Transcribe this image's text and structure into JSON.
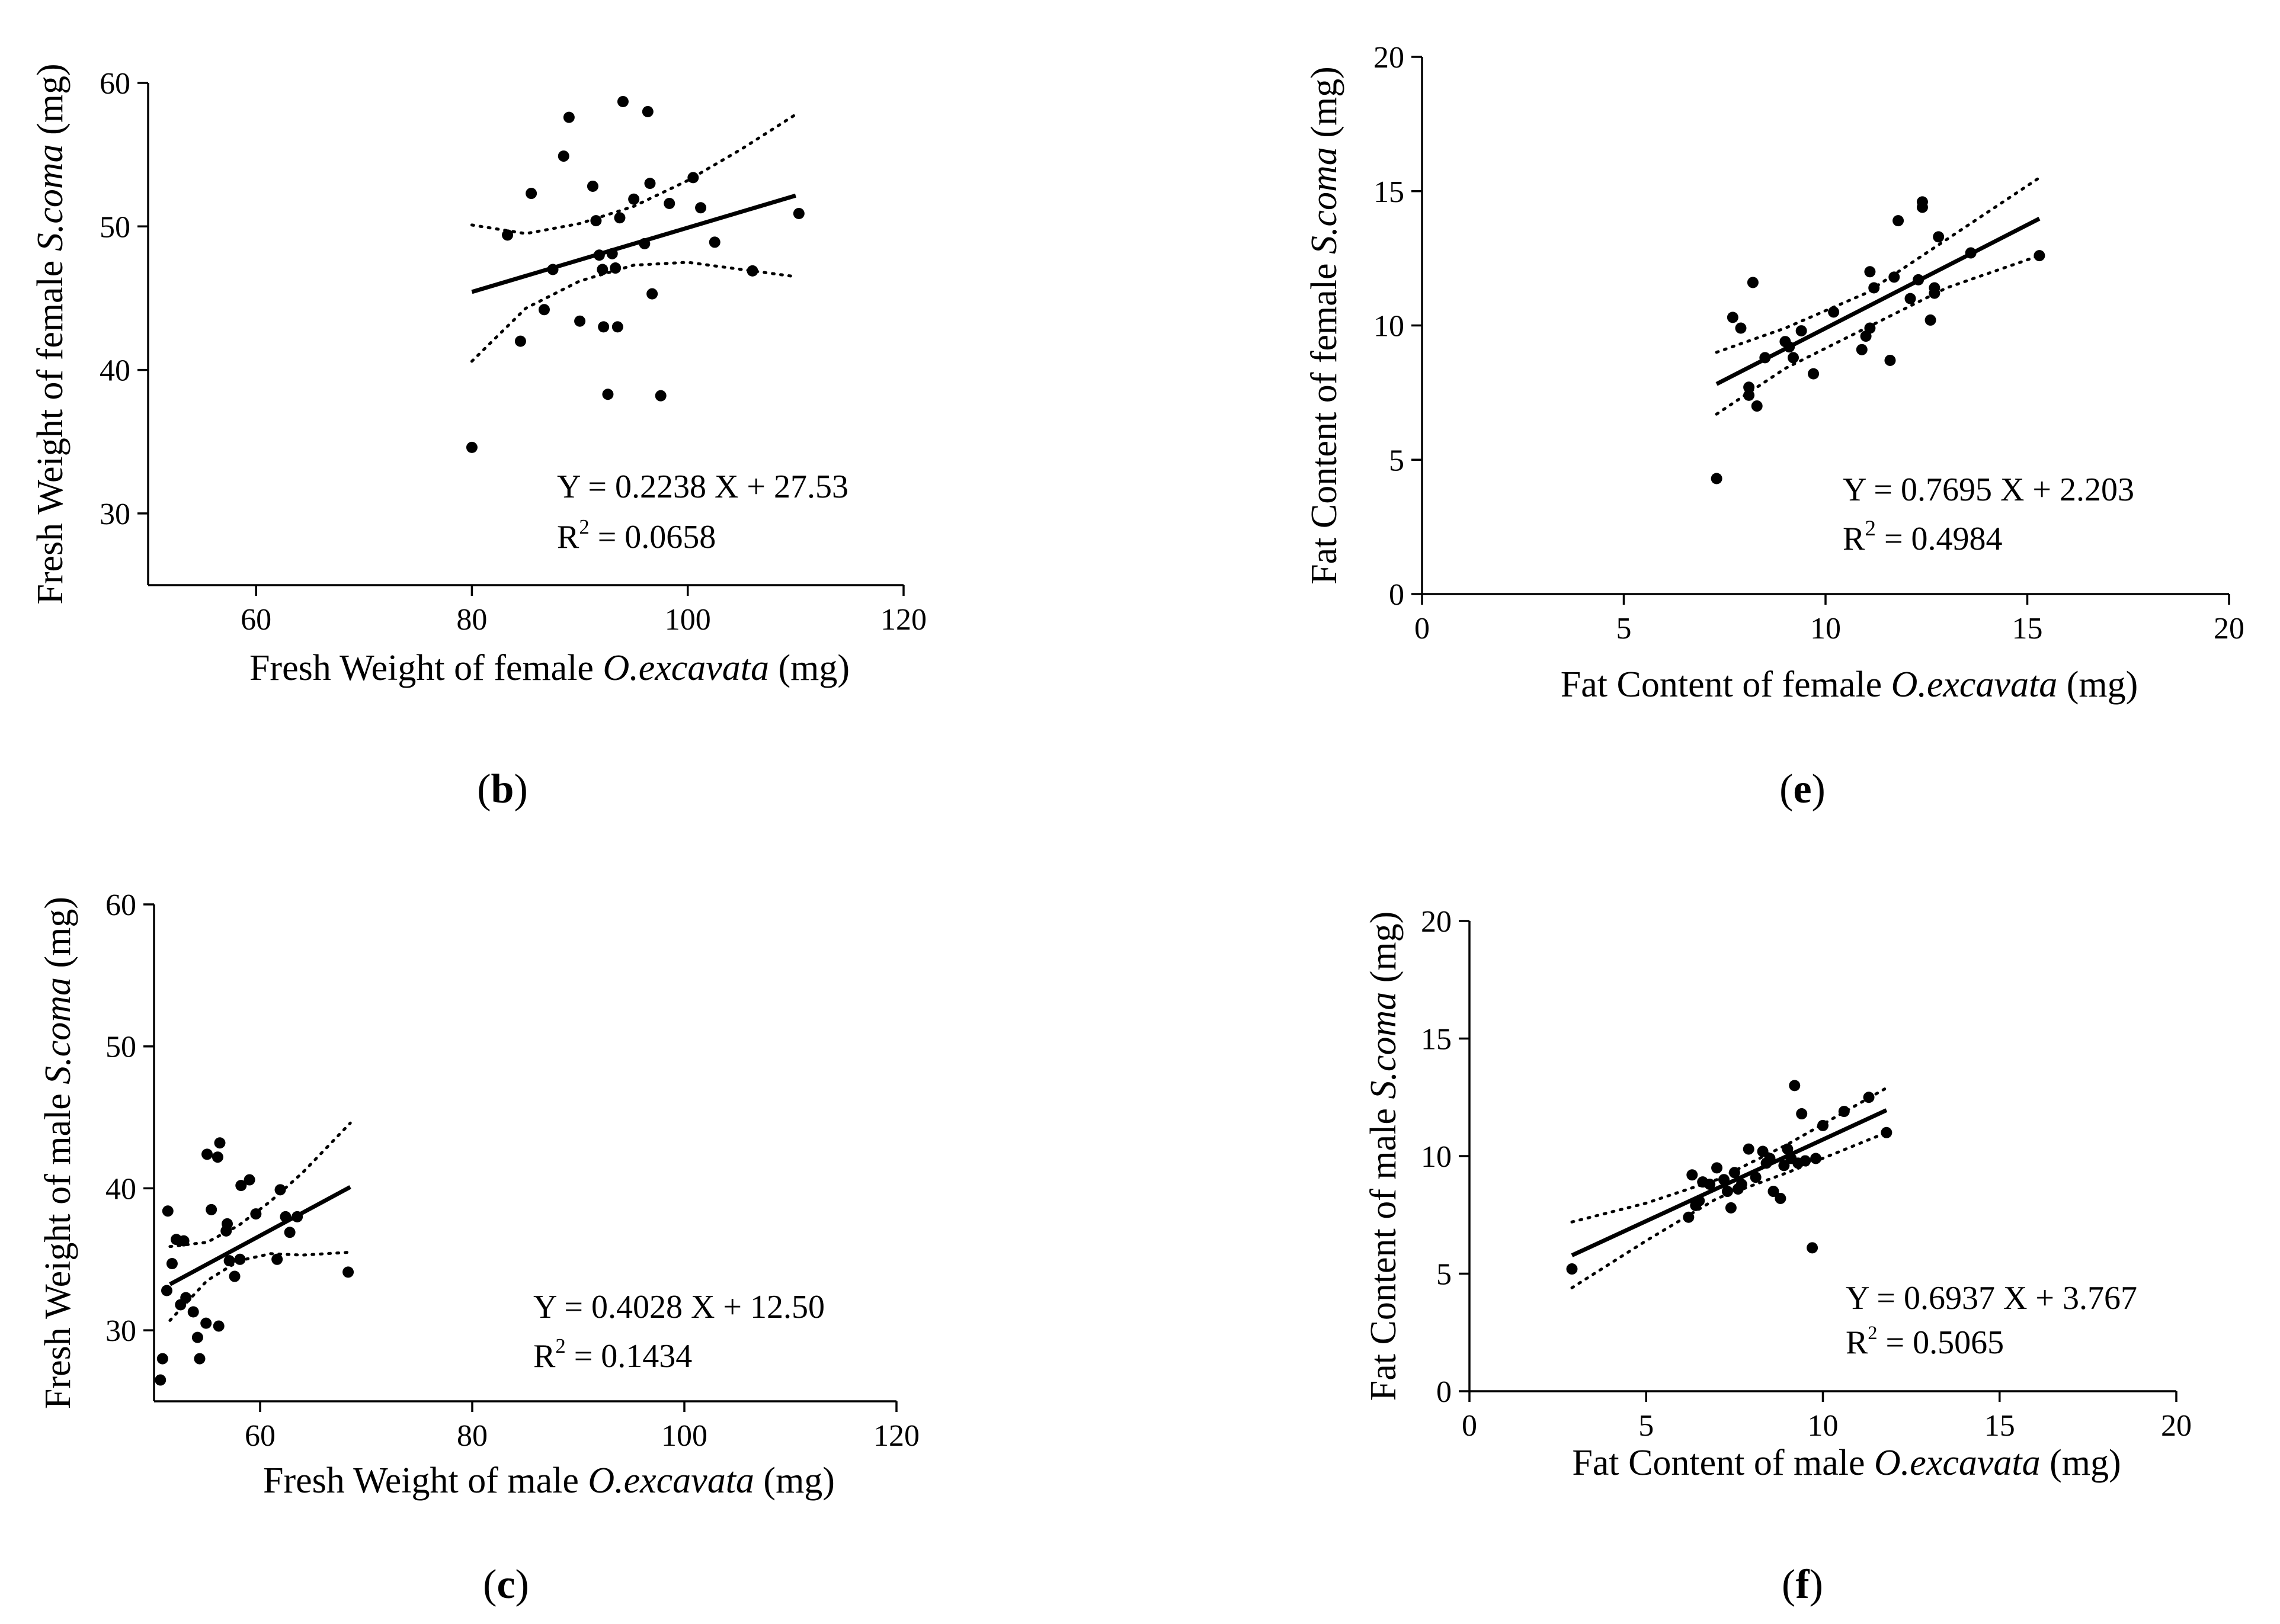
{
  "panels": [
    {
      "id": "b",
      "label": "b",
      "chart_data": {
        "type": "scatter",
        "xlabel_pre": "Fresh Weight of female ",
        "xlabel_italic": "O.excavata",
        "xlabel_post": " (mg)",
        "ylabel_pre": "Fresh Weight of female ",
        "ylabel_italic": "S.coma",
        "ylabel_post": " (mg)",
        "xlim": [
          50,
          120
        ],
        "ylim": [
          25,
          60
        ],
        "xticks": [
          60,
          80,
          100,
          120
        ],
        "yticks": [
          30,
          40,
          50,
          60
        ],
        "equation": "Y = 0.2238 X + 27.53",
        "r2_label": "R",
        "r2_exp": "2",
        "r2_value": " = 0.0658",
        "fit": {
          "slope": 0.2238,
          "intercept": 27.53,
          "x_range": [
            80,
            110
          ]
        },
        "ci_upper": [
          [
            80,
            50.1
          ],
          [
            85,
            49.5
          ],
          [
            90,
            50.2
          ],
          [
            95,
            51.4
          ],
          [
            100,
            53.2
          ],
          [
            105,
            55.4
          ],
          [
            110,
            57.8
          ]
        ],
        "ci_lower": [
          [
            80,
            40.6
          ],
          [
            85,
            44.3
          ],
          [
            90,
            46.2
          ],
          [
            95,
            47.3
          ],
          [
            100,
            47.5
          ],
          [
            105,
            47.0
          ],
          [
            110,
            46.5
          ]
        ],
        "points": [
          [
            80,
            34.6
          ],
          [
            83.3,
            49.4
          ],
          [
            84.5,
            42.0
          ],
          [
            85.5,
            52.3
          ],
          [
            86.7,
            44.2
          ],
          [
            87.5,
            47.0
          ],
          [
            88.5,
            54.9
          ],
          [
            89,
            57.6
          ],
          [
            90,
            43.4
          ],
          [
            91.2,
            52.8
          ],
          [
            91.5,
            50.4
          ],
          [
            91.8,
            48.0
          ],
          [
            92.1,
            47.0
          ],
          [
            92.2,
            43.0
          ],
          [
            92.6,
            38.3
          ],
          [
            93,
            48.1
          ],
          [
            93.3,
            47.1
          ],
          [
            93.5,
            43.0
          ],
          [
            93.7,
            50.6
          ],
          [
            94,
            58.7
          ],
          [
            95,
            51.9
          ],
          [
            96,
            48.8
          ],
          [
            96.3,
            58.0
          ],
          [
            96.5,
            53.0
          ],
          [
            96.7,
            45.3
          ],
          [
            97.5,
            38.2
          ],
          [
            98.3,
            51.6
          ],
          [
            100.5,
            53.4
          ],
          [
            101.2,
            51.3
          ],
          [
            102.5,
            48.9
          ],
          [
            106,
            46.9
          ],
          [
            110.3,
            50.9
          ]
        ]
      }
    },
    {
      "id": "e",
      "label": "e",
      "chart_data": {
        "type": "scatter",
        "xlabel_pre": "Fat Content of female ",
        "xlabel_italic": "O.excavata",
        "xlabel_post": " (mg)",
        "ylabel_pre": "Fat Content of female ",
        "ylabel_italic": "S.coma",
        "ylabel_post": " (mg)",
        "xlim": [
          0,
          20
        ],
        "ylim": [
          0,
          20
        ],
        "xticks": [
          0,
          5,
          10,
          15,
          20
        ],
        "yticks": [
          0,
          5,
          10,
          15,
          20
        ],
        "equation": "Y = 0.7695 X + 2.203",
        "r2_label": "R",
        "r2_exp": "2",
        "r2_value": " = 0.4984",
        "fit": {
          "slope": 0.7695,
          "intercept": 2.203,
          "x_range": [
            7.3,
            15.3
          ]
        },
        "ci_upper": [
          [
            7.3,
            9.0
          ],
          [
            9,
            9.9
          ],
          [
            11,
            11.2
          ],
          [
            13,
            13.2
          ],
          [
            15.3,
            15.5
          ]
        ],
        "ci_lower": [
          [
            7.3,
            6.7
          ],
          [
            9,
            8.4
          ],
          [
            11,
            9.9
          ],
          [
            13,
            11.4
          ],
          [
            15.3,
            12.6
          ]
        ],
        "points": [
          [
            7.3,
            4.3
          ],
          [
            7.7,
            10.3
          ],
          [
            7.9,
            9.9
          ],
          [
            8.1,
            7.7
          ],
          [
            8.1,
            7.4
          ],
          [
            8.2,
            11.6
          ],
          [
            8.3,
            7.0
          ],
          [
            8.5,
            8.8
          ],
          [
            9,
            9.4
          ],
          [
            9.1,
            9.2
          ],
          [
            9.2,
            8.8
          ],
          [
            9.4,
            9.8
          ],
          [
            9.7,
            8.2
          ],
          [
            10.2,
            10.5
          ],
          [
            10.9,
            9.1
          ],
          [
            11,
            9.6
          ],
          [
            11.1,
            9.9
          ],
          [
            11.1,
            12.0
          ],
          [
            11.2,
            11.4
          ],
          [
            11.6,
            8.7
          ],
          [
            11.7,
            11.8
          ],
          [
            11.8,
            13.9
          ],
          [
            12.1,
            11.0
          ],
          [
            12.3,
            11.7
          ],
          [
            12.4,
            14.4
          ],
          [
            12.4,
            14.6
          ],
          [
            12.6,
            10.2
          ],
          [
            12.7,
            11.4
          ],
          [
            12.7,
            11.2
          ],
          [
            12.8,
            13.3
          ],
          [
            13.6,
            12.7
          ],
          [
            15.3,
            12.6
          ]
        ]
      }
    },
    {
      "id": "c",
      "label": "c",
      "chart_data": {
        "type": "scatter",
        "xlabel_pre": "Fresh Weight of male ",
        "xlabel_italic": "O.excavata",
        "xlabel_post": " (mg)",
        "ylabel_pre": "Fresh Weight of male ",
        "ylabel_italic": "S.coma",
        "ylabel_post": " (mg)",
        "xlim": [
          50,
          120
        ],
        "ylim": [
          25,
          60
        ],
        "xticks": [
          60,
          80,
          100,
          120
        ],
        "yticks": [
          30,
          40,
          50,
          60
        ],
        "equation": "Y = 0.4028 X + 12.50",
        "r2_label": "R",
        "r2_exp": "2",
        "r2_value": " = 0.1434",
        "fit": {
          "slope": 0.4028,
          "intercept": 12.5,
          "x_range": [
            51.5,
            68.5
          ]
        },
        "ci_upper": [
          [
            51.5,
            35.9
          ],
          [
            55,
            36.2
          ],
          [
            58,
            37.4
          ],
          [
            61,
            39.1
          ],
          [
            64,
            41.1
          ],
          [
            68.5,
            44.6
          ]
        ],
        "ci_lower": [
          [
            51.5,
            30.7
          ],
          [
            55,
            33.5
          ],
          [
            58,
            34.9
          ],
          [
            61,
            35.4
          ],
          [
            64,
            35.3
          ],
          [
            68.5,
            35.5
          ]
        ],
        "points": [
          [
            50.6,
            26.5
          ],
          [
            50.8,
            28.0
          ],
          [
            51.2,
            32.8
          ],
          [
            51.3,
            38.4
          ],
          [
            51.7,
            34.7
          ],
          [
            52.1,
            36.4
          ],
          [
            52.5,
            31.8
          ],
          [
            52.8,
            36.3
          ],
          [
            53,
            32.3
          ],
          [
            53.7,
            31.3
          ],
          [
            54.1,
            29.5
          ],
          [
            54.3,
            28.0
          ],
          [
            54.9,
            30.5
          ],
          [
            55,
            42.4
          ],
          [
            55.4,
            38.5
          ],
          [
            56,
            42.2
          ],
          [
            56.1,
            30.3
          ],
          [
            56.2,
            43.2
          ],
          [
            56.8,
            37.0
          ],
          [
            56.9,
            37.5
          ],
          [
            57.1,
            34.9
          ],
          [
            57.6,
            33.8
          ],
          [
            58.1,
            35.0
          ],
          [
            58.2,
            40.2
          ],
          [
            59,
            40.6
          ],
          [
            59.6,
            38.2
          ],
          [
            61.6,
            35.0
          ],
          [
            61.9,
            39.9
          ],
          [
            62.4,
            38.0
          ],
          [
            62.8,
            36.9
          ],
          [
            63.5,
            38.0
          ],
          [
            68.3,
            34.1
          ]
        ]
      }
    },
    {
      "id": "f",
      "label": "f",
      "chart_data": {
        "type": "scatter",
        "xlabel_pre": "Fat Content of male ",
        "xlabel_italic": "O.excavata",
        "xlabel_post": " (mg)",
        "ylabel_pre": "Fat Content of male ",
        "ylabel_italic": "S.coma",
        "ylabel_post": " (mg)",
        "xlim": [
          0,
          20
        ],
        "ylim": [
          0,
          20
        ],
        "xticks": [
          0,
          5,
          10,
          15,
          20
        ],
        "yticks": [
          0,
          5,
          10,
          15,
          20
        ],
        "equation": "Y = 0.6937 X + 3.767",
        "r2_label": "R",
        "r2_exp": "2",
        "r2_value": " = 0.5065",
        "fit": {
          "slope": 0.6937,
          "intercept": 3.767,
          "x_range": [
            2.9,
            11.8
          ]
        },
        "ci_upper": [
          [
            2.9,
            7.2
          ],
          [
            5,
            8.0
          ],
          [
            7,
            9.0
          ],
          [
            9,
            10.5
          ],
          [
            11.8,
            12.9
          ]
        ],
        "ci_lower": [
          [
            2.9,
            4.4
          ],
          [
            5,
            6.4
          ],
          [
            7,
            8.2
          ],
          [
            9,
            9.3
          ],
          [
            11.8,
            11.0
          ]
        ],
        "points": [
          [
            2.9,
            5.2
          ],
          [
            6.2,
            7.4
          ],
          [
            6.3,
            9.2
          ],
          [
            6.4,
            7.9
          ],
          [
            6.5,
            8.1
          ],
          [
            6.6,
            8.9
          ],
          [
            6.8,
            8.8
          ],
          [
            7,
            9.5
          ],
          [
            7.2,
            9.0
          ],
          [
            7.3,
            8.5
          ],
          [
            7.4,
            7.8
          ],
          [
            7.5,
            9.3
          ],
          [
            7.6,
            8.6
          ],
          [
            7.7,
            8.8
          ],
          [
            7.9,
            10.3
          ],
          [
            8.1,
            9.1
          ],
          [
            8.3,
            10.2
          ],
          [
            8.4,
            9.7
          ],
          [
            8.5,
            9.9
          ],
          [
            8.6,
            8.5
          ],
          [
            8.8,
            8.2
          ],
          [
            8.9,
            9.6
          ],
          [
            9.0,
            10.3
          ],
          [
            9.1,
            9.9
          ],
          [
            9.2,
            13.0
          ],
          [
            9.3,
            9.7
          ],
          [
            9.4,
            11.8
          ],
          [
            9.5,
            9.8
          ],
          [
            9.7,
            6.1
          ],
          [
            9.8,
            9.9
          ],
          [
            10,
            11.3
          ],
          [
            10.6,
            11.9
          ],
          [
            11.3,
            12.5
          ],
          [
            11.8,
            11.0
          ]
        ]
      }
    }
  ]
}
